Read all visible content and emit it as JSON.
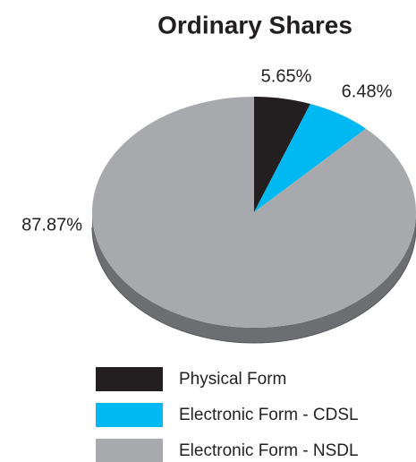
{
  "chart_data": {
    "type": "pie",
    "title": "Ordinary Shares",
    "categories": [
      "Physical Form",
      "Electronic Form - CDSL",
      "Electronic Form - NSDL"
    ],
    "values": [
      5.65,
      6.48,
      87.87
    ],
    "value_labels": [
      "5.65%",
      "6.48%",
      "87.87%"
    ],
    "colors": [
      "#231f20",
      "#00b9f2",
      "#a7a9ac"
    ]
  }
}
